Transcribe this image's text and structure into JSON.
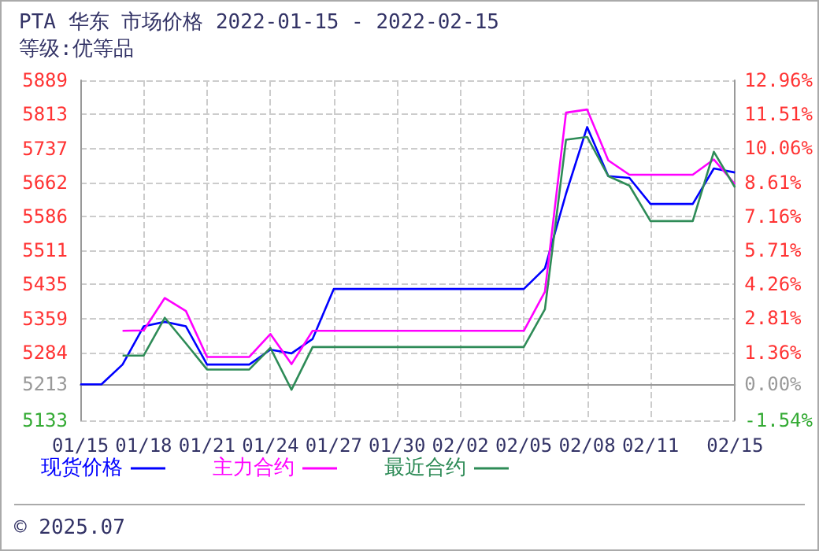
{
  "chart_data": {
    "type": "line",
    "title": "PTA 华东 市场价格 2022-01-15 - 2022-02-15",
    "subtitle": "等级:优等品",
    "categories": [
      "01/15",
      null,
      null,
      "01/18",
      null,
      null,
      "01/21",
      null,
      null,
      "01/24",
      null,
      null,
      "01/27",
      null,
      null,
      "01/30",
      null,
      null,
      "02/02",
      null,
      null,
      "02/05",
      null,
      null,
      "02/08",
      null,
      null,
      "02/11",
      null,
      null,
      null,
      "02/15"
    ],
    "series": [
      {
        "name": "现货价格",
        "color": "#0000ff",
        "values": [
          5213,
          5213,
          5257,
          5342,
          5352,
          5342,
          5257,
          5257,
          5257,
          5290,
          5282,
          5314,
          5425,
          5425,
          5425,
          5425,
          5425,
          5425,
          5425,
          5425,
          5425,
          5425,
          5471,
          5637,
          5785,
          5676,
          5672,
          5614,
          5614,
          5614,
          5693,
          5684
        ]
      },
      {
        "name": "主力合约",
        "color": "#ff00ff",
        "values": [
          null,
          null,
          5332,
          5333,
          5405,
          5376,
          5274,
          5274,
          5274,
          5325,
          5258,
          5332,
          5332,
          5332,
          5332,
          5332,
          5332,
          5332,
          5332,
          5332,
          5332,
          5332,
          5419,
          5817,
          5824,
          5711,
          5679,
          5679,
          5679,
          5679,
          5713,
          5658
        ]
      },
      {
        "name": "最近合约",
        "color": "#2e8b57",
        "values": [
          null,
          null,
          5277,
          5277,
          5361,
          5304,
          5246,
          5246,
          5246,
          5294,
          5201,
          5296,
          5296,
          5296,
          5296,
          5296,
          5296,
          5296,
          5296,
          5296,
          5296,
          5296,
          5380,
          5757,
          5763,
          5676,
          5655,
          5576,
          5576,
          5576,
          5730,
          5651
        ]
      }
    ],
    "ylim": [
      5133,
      5889
    ],
    "yticks": [
      5133,
      5213,
      5284,
      5359,
      5435,
      5511,
      5586,
      5662,
      5737,
      5813,
      5889
    ],
    "y2lim": [
      -1.54,
      12.96
    ],
    "y2ticks": [
      {
        "value": -1.54,
        "label": "-1.54%"
      },
      {
        "value": 0,
        "label": "0.00%"
      },
      {
        "value": 1.36,
        "label": "1.36%"
      },
      {
        "value": 2.81,
        "label": "2.81%"
      },
      {
        "value": 4.26,
        "label": "4.26%"
      },
      {
        "value": 5.71,
        "label": "5.71%"
      },
      {
        "value": 7.16,
        "label": "7.16%"
      },
      {
        "value": 8.61,
        "label": "8.61%"
      },
      {
        "value": 10.06,
        "label": "10.06%"
      },
      {
        "value": 11.51,
        "label": "11.51%"
      },
      {
        "value": 12.96,
        "label": "12.96%"
      }
    ],
    "grid": true,
    "legend": "bottom",
    "marker": "none",
    "line_style": "solid",
    "annotations": [
      "© 2025.07"
    ]
  }
}
